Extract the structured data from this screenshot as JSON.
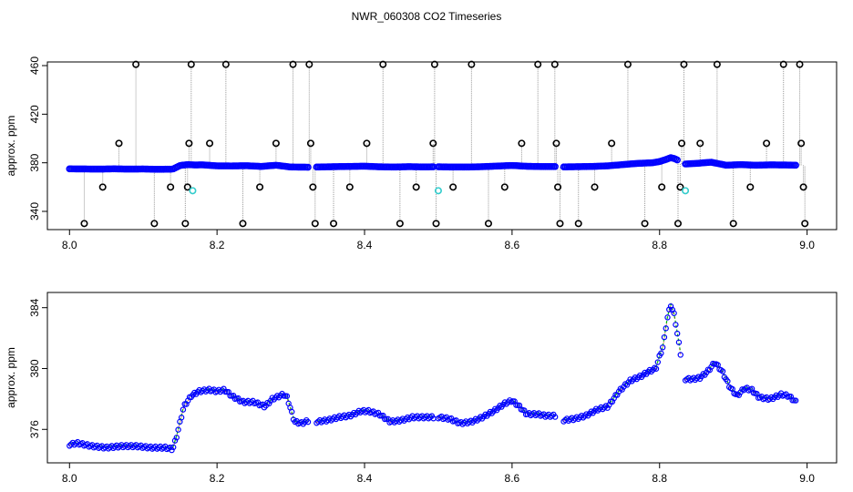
{
  "chart_data": {
    "title": "NWR_060308  CO2 Timeseries",
    "colors": {
      "axes": "#000000",
      "outlier_marker": "#000000",
      "outlier_line": "#9a9a9a",
      "flagged_marker": "#33cccc",
      "main_marker": "#0000ff",
      "series_green": "#00bb00",
      "series_red": "#ee0000"
    },
    "panels": [
      {
        "type": "scatter",
        "ylabel": "approx. ppm",
        "xlim": [
          7.97,
          9.04
        ],
        "ylim": [
          325,
          463
        ],
        "xticks": [
          {
            "value": 8.0,
            "label": "8.0"
          },
          {
            "value": 8.2,
            "label": "8.2"
          },
          {
            "value": 8.4,
            "label": "8.4"
          },
          {
            "value": 8.6,
            "label": "8.6"
          },
          {
            "value": 8.8,
            "label": "8.8"
          },
          {
            "value": 9.0,
            "label": "9.0"
          }
        ],
        "yticks": [
          {
            "value": 340,
            "label": "340"
          },
          {
            "value": 380,
            "label": "380"
          },
          {
            "value": 420,
            "label": "420"
          },
          {
            "value": 460,
            "label": "460"
          }
        ],
        "series": [
          {
            "x": [
              8.0,
              8.02,
              8.04,
              8.06,
              8.08,
              8.1,
              8.12,
              8.14,
              8.15,
              8.16,
              8.17,
              8.18,
              8.2,
              8.22,
              8.24,
              8.26,
              8.28,
              8.3,
              8.32,
              8.325
            ],
            "values": [
              375,
              374.9,
              374.8,
              375,
              374.8,
              374.9,
              374.6,
              374.8,
              377.8,
              378.5,
              378.2,
              378.3,
              377.5,
              377.4,
              377.6,
              377,
              378,
              376.5,
              376.4,
              376.3
            ]
          },
          {
            "x": [
              8.335,
              8.36,
              8.38,
              8.4,
              8.42,
              8.44,
              8.46,
              8.48,
              8.495
            ],
            "values": [
              376.5,
              376.8,
              377,
              377.2,
              376.7,
              376.5,
              376.8,
              376.6,
              376.7
            ]
          },
          {
            "x": [
              8.5,
              8.52,
              8.54,
              8.56,
              8.58,
              8.6,
              8.62,
              8.64,
              8.66
            ],
            "values": [
              376.7,
              376.5,
              376.5,
              376.8,
              377.3,
              377.8,
              377.1,
              376.9,
              376.9
            ]
          },
          {
            "x": [
              8.67,
              8.69,
              8.71,
              8.73,
              8.75,
              8.77,
              8.79,
              8.8,
              8.81,
              8.815,
              8.82,
              8.825
            ],
            "values": [
              376.6,
              376.8,
              377,
              377.5,
              378.5,
              379.5,
              380,
              381,
              383,
              384.2,
              383.5,
              382
            ]
          },
          {
            "x": [
              8.835,
              8.85,
              8.87,
              8.89,
              8.91,
              8.93,
              8.95,
              8.97,
              8.985
            ],
            "values": [
              379,
              379.5,
              380.5,
              378,
              378.5,
              378,
              378.3,
              378.2,
              378
            ]
          }
        ],
        "outliers": [
          {
            "x": 8.02,
            "y": 330
          },
          {
            "x": 8.045,
            "y": 360
          },
          {
            "x": 8.067,
            "y": 396
          },
          {
            "x": 8.09,
            "y": 461
          },
          {
            "x": 8.115,
            "y": 330
          },
          {
            "x": 8.137,
            "y": 360
          },
          {
            "x": 8.157,
            "y": 330
          },
          {
            "x": 8.16,
            "y": 360
          },
          {
            "x": 8.162,
            "y": 396
          },
          {
            "x": 8.165,
            "y": 461
          },
          {
            "x": 8.19,
            "y": 396
          },
          {
            "x": 8.212,
            "y": 461
          },
          {
            "x": 8.235,
            "y": 330
          },
          {
            "x": 8.258,
            "y": 360
          },
          {
            "x": 8.28,
            "y": 396
          },
          {
            "x": 8.303,
            "y": 461
          },
          {
            "x": 8.325,
            "y": 461
          },
          {
            "x": 8.327,
            "y": 396
          },
          {
            "x": 8.33,
            "y": 360
          },
          {
            "x": 8.333,
            "y": 330
          },
          {
            "x": 8.358,
            "y": 330
          },
          {
            "x": 8.38,
            "y": 360
          },
          {
            "x": 8.403,
            "y": 396
          },
          {
            "x": 8.425,
            "y": 461
          },
          {
            "x": 8.448,
            "y": 330
          },
          {
            "x": 8.47,
            "y": 360
          },
          {
            "x": 8.493,
            "y": 396
          },
          {
            "x": 8.495,
            "y": 461
          },
          {
            "x": 8.497,
            "y": 330
          },
          {
            "x": 8.52,
            "y": 360
          },
          {
            "x": 8.545,
            "y": 461
          },
          {
            "x": 8.568,
            "y": 330
          },
          {
            "x": 8.59,
            "y": 360
          },
          {
            "x": 8.613,
            "y": 396
          },
          {
            "x": 8.635,
            "y": 461
          },
          {
            "x": 8.658,
            "y": 461
          },
          {
            "x": 8.66,
            "y": 396
          },
          {
            "x": 8.662,
            "y": 360
          },
          {
            "x": 8.665,
            "y": 330
          },
          {
            "x": 8.69,
            "y": 330
          },
          {
            "x": 8.712,
            "y": 360
          },
          {
            "x": 8.735,
            "y": 396
          },
          {
            "x": 8.757,
            "y": 461
          },
          {
            "x": 8.78,
            "y": 330
          },
          {
            "x": 8.803,
            "y": 360
          },
          {
            "x": 8.825,
            "y": 330
          },
          {
            "x": 8.828,
            "y": 360
          },
          {
            "x": 8.83,
            "y": 396
          },
          {
            "x": 8.833,
            "y": 461
          },
          {
            "x": 8.855,
            "y": 396
          },
          {
            "x": 8.878,
            "y": 461
          },
          {
            "x": 8.9,
            "y": 330
          },
          {
            "x": 8.923,
            "y": 360
          },
          {
            "x": 8.945,
            "y": 396
          },
          {
            "x": 8.968,
            "y": 461
          },
          {
            "x": 8.99,
            "y": 461
          },
          {
            "x": 8.992,
            "y": 396
          },
          {
            "x": 8.995,
            "y": 360
          },
          {
            "x": 8.997,
            "y": 330
          }
        ],
        "flagged": [
          {
            "x": 8.167,
            "y": 357
          },
          {
            "x": 8.5,
            "y": 357
          },
          {
            "x": 8.835,
            "y": 357
          }
        ]
      },
      {
        "type": "scatter",
        "ylabel": "approx. ppm",
        "xlim": [
          7.97,
          9.04
        ],
        "ylim": [
          373.8,
          385.0
        ],
        "xticks": [
          {
            "value": 8.0,
            "label": "8.0"
          },
          {
            "value": 8.2,
            "label": "8.2"
          },
          {
            "value": 8.4,
            "label": "8.4"
          },
          {
            "value": 8.6,
            "label": "8.6"
          },
          {
            "value": 8.8,
            "label": "8.8"
          },
          {
            "value": 9.0,
            "label": "9.0"
          }
        ],
        "yticks": [
          {
            "value": 376,
            "label": "376"
          },
          {
            "value": 380,
            "label": "380"
          },
          {
            "value": 384,
            "label": "384"
          }
        ],
        "series": [
          {
            "x": [
              8.0,
              8.01,
              8.03,
              8.05,
              8.07,
              8.09,
              8.11,
              8.13,
              8.14,
              8.145,
              8.155,
              8.165,
              8.175,
              8.19,
              8.2,
              8.21,
              8.22,
              8.235,
              8.25,
              8.265,
              8.275,
              8.29,
              8.295,
              8.305,
              8.315,
              8.325
            ],
            "values": [
              375,
              375.1,
              374.9,
              374.8,
              374.9,
              374.9,
              374.8,
              374.8,
              374.7,
              375.5,
              377.5,
              378.2,
              378.5,
              378.6,
              378.5,
              378.6,
              378.2,
              377.8,
              377.8,
              377.5,
              378,
              378.3,
              378.1,
              376.5,
              376.4,
              376.6
            ]
          },
          {
            "x": [
              8.335,
              8.35,
              8.365,
              8.38,
              8.395,
              8.405,
              8.42,
              8.435,
              8.45,
              8.465,
              8.48,
              8.495
            ],
            "values": [
              376.5,
              376.6,
              376.8,
              376.9,
              377.2,
              377.2,
              377.0,
              376.5,
              376.6,
              376.8,
              376.8,
              376.8
            ]
          },
          {
            "x": [
              8.5,
              8.515,
              8.53,
              8.545,
              8.56,
              8.575,
              8.59,
              8.6,
              8.61,
              8.62,
              8.635,
              8.645,
              8.66
            ],
            "values": [
              376.8,
              376.7,
              376.4,
              376.5,
              376.8,
              377.2,
              377.7,
              377.9,
              377.5,
              377.0,
              377.0,
              376.9,
              376.9
            ]
          },
          {
            "x": [
              8.67,
              8.685,
              8.7,
              8.715,
              8.73,
              8.745,
              8.76,
              8.775,
              8.785,
              8.795,
              8.8,
              8.805,
              8.81,
              8.815,
              8.82,
              8.825,
              8.83
            ],
            "values": [
              376.6,
              376.7,
              376.9,
              377.3,
              377.5,
              378.5,
              379.2,
              379.5,
              379.8,
              380.0,
              380.8,
              381.5,
              383.2,
              384.2,
              383.5,
              382.0,
              380.5
            ]
          },
          {
            "x": [
              8.835,
              8.845,
              8.855,
              8.865,
              8.875,
              8.885,
              8.895,
              8.905,
              8.915,
              8.925,
              8.935,
              8.95,
              8.965,
              8.975,
              8.985
            ],
            "values": [
              379.3,
              379.3,
              379.4,
              379.8,
              380.4,
              379.8,
              378.8,
              378.2,
              378.7,
              378.6,
              378.1,
              378.0,
              378.3,
              378.2,
              377.8
            ]
          }
        ]
      }
    ]
  }
}
